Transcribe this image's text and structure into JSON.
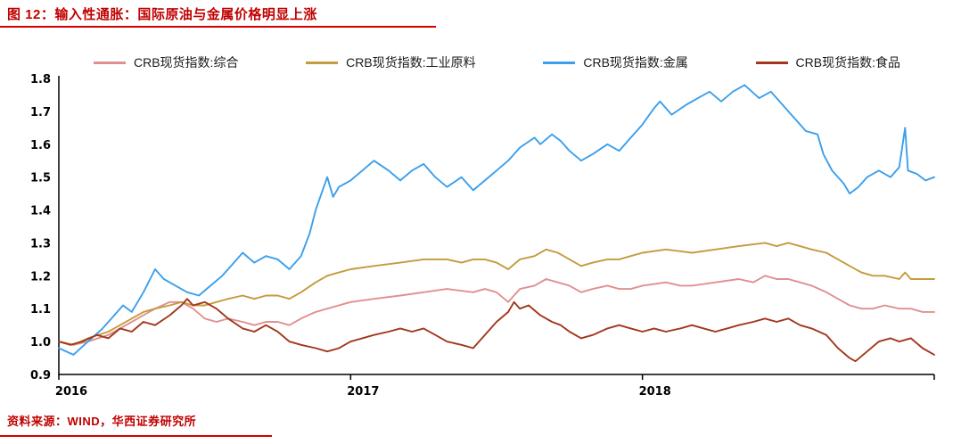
{
  "page": {
    "title": "图 12：输入性通胀：国际原油与金属价格明显上涨",
    "source_note": "资料来源：WIND，华西证券研究所",
    "accent_color": "#c00000"
  },
  "chart_data": {
    "type": "line",
    "title": "图 12：输入性通胀：国际原油与金属价格明显上涨",
    "grid": false,
    "legend_position": "top",
    "x_axis": {
      "range": [
        2016,
        2019
      ],
      "ticks": [
        "2016",
        "2017",
        "2018"
      ]
    },
    "y_axis": {
      "range": [
        0.9,
        1.8
      ],
      "ticks": [
        "0.9",
        "1.0",
        "1.1",
        "1.2",
        "1.3",
        "1.4",
        "1.5",
        "1.6",
        "1.7",
        "1.8"
      ]
    },
    "series": [
      {
        "name": "CRB现货指数:综合",
        "color": "#e09090",
        "points": [
          [
            2016.0,
            1.0
          ],
          [
            2016.05,
            0.99
          ],
          [
            2016.1,
            1.0
          ],
          [
            2016.17,
            1.02
          ],
          [
            2016.25,
            1.06
          ],
          [
            2016.29,
            1.08
          ],
          [
            2016.33,
            1.1
          ],
          [
            2016.38,
            1.12
          ],
          [
            2016.42,
            1.12
          ],
          [
            2016.46,
            1.1
          ],
          [
            2016.5,
            1.07
          ],
          [
            2016.54,
            1.06
          ],
          [
            2016.58,
            1.07
          ],
          [
            2016.63,
            1.06
          ],
          [
            2016.67,
            1.05
          ],
          [
            2016.71,
            1.06
          ],
          [
            2016.75,
            1.06
          ],
          [
            2016.79,
            1.05
          ],
          [
            2016.83,
            1.07
          ],
          [
            2016.88,
            1.09
          ],
          [
            2016.92,
            1.1
          ],
          [
            2016.96,
            1.11
          ],
          [
            2017.0,
            1.12
          ],
          [
            2017.08,
            1.13
          ],
          [
            2017.17,
            1.14
          ],
          [
            2017.25,
            1.15
          ],
          [
            2017.33,
            1.16
          ],
          [
            2017.42,
            1.15
          ],
          [
            2017.46,
            1.16
          ],
          [
            2017.5,
            1.15
          ],
          [
            2017.54,
            1.12
          ],
          [
            2017.58,
            1.16
          ],
          [
            2017.63,
            1.17
          ],
          [
            2017.67,
            1.19
          ],
          [
            2017.71,
            1.18
          ],
          [
            2017.75,
            1.17
          ],
          [
            2017.79,
            1.15
          ],
          [
            2017.83,
            1.16
          ],
          [
            2017.88,
            1.17
          ],
          [
            2017.92,
            1.16
          ],
          [
            2017.96,
            1.16
          ],
          [
            2018.0,
            1.17
          ],
          [
            2018.08,
            1.18
          ],
          [
            2018.13,
            1.17
          ],
          [
            2018.17,
            1.17
          ],
          [
            2018.25,
            1.18
          ],
          [
            2018.33,
            1.19
          ],
          [
            2018.38,
            1.18
          ],
          [
            2018.42,
            1.2
          ],
          [
            2018.46,
            1.19
          ],
          [
            2018.5,
            1.19
          ],
          [
            2018.54,
            1.18
          ],
          [
            2018.58,
            1.17
          ],
          [
            2018.63,
            1.15
          ],
          [
            2018.67,
            1.13
          ],
          [
            2018.71,
            1.11
          ],
          [
            2018.75,
            1.1
          ],
          [
            2018.79,
            1.1
          ],
          [
            2018.83,
            1.11
          ],
          [
            2018.88,
            1.1
          ],
          [
            2018.92,
            1.1
          ],
          [
            2018.96,
            1.09
          ],
          [
            2019.0,
            1.09
          ]
        ]
      },
      {
        "name": "CRB现货指数:工业原料",
        "color": "#c49b3e",
        "points": [
          [
            2016.0,
            1.0
          ],
          [
            2016.05,
            0.99
          ],
          [
            2016.1,
            1.01
          ],
          [
            2016.17,
            1.03
          ],
          [
            2016.25,
            1.07
          ],
          [
            2016.29,
            1.09
          ],
          [
            2016.33,
            1.1
          ],
          [
            2016.38,
            1.11
          ],
          [
            2016.42,
            1.12
          ],
          [
            2016.46,
            1.11
          ],
          [
            2016.5,
            1.11
          ],
          [
            2016.54,
            1.12
          ],
          [
            2016.58,
            1.13
          ],
          [
            2016.63,
            1.14
          ],
          [
            2016.67,
            1.13
          ],
          [
            2016.71,
            1.14
          ],
          [
            2016.75,
            1.14
          ],
          [
            2016.79,
            1.13
          ],
          [
            2016.83,
            1.15
          ],
          [
            2016.88,
            1.18
          ],
          [
            2016.92,
            1.2
          ],
          [
            2016.96,
            1.21
          ],
          [
            2017.0,
            1.22
          ],
          [
            2017.08,
            1.23
          ],
          [
            2017.17,
            1.24
          ],
          [
            2017.25,
            1.25
          ],
          [
            2017.33,
            1.25
          ],
          [
            2017.38,
            1.24
          ],
          [
            2017.42,
            1.25
          ],
          [
            2017.46,
            1.25
          ],
          [
            2017.5,
            1.24
          ],
          [
            2017.54,
            1.22
          ],
          [
            2017.58,
            1.25
          ],
          [
            2017.63,
            1.26
          ],
          [
            2017.67,
            1.28
          ],
          [
            2017.71,
            1.27
          ],
          [
            2017.75,
            1.25
          ],
          [
            2017.79,
            1.23
          ],
          [
            2017.83,
            1.24
          ],
          [
            2017.88,
            1.25
          ],
          [
            2017.92,
            1.25
          ],
          [
            2017.96,
            1.26
          ],
          [
            2018.0,
            1.27
          ],
          [
            2018.08,
            1.28
          ],
          [
            2018.17,
            1.27
          ],
          [
            2018.25,
            1.28
          ],
          [
            2018.33,
            1.29
          ],
          [
            2018.42,
            1.3
          ],
          [
            2018.46,
            1.29
          ],
          [
            2018.5,
            1.3
          ],
          [
            2018.54,
            1.29
          ],
          [
            2018.58,
            1.28
          ],
          [
            2018.63,
            1.27
          ],
          [
            2018.67,
            1.25
          ],
          [
            2018.71,
            1.23
          ],
          [
            2018.75,
            1.21
          ],
          [
            2018.79,
            1.2
          ],
          [
            2018.83,
            1.2
          ],
          [
            2018.88,
            1.19
          ],
          [
            2018.9,
            1.21
          ],
          [
            2018.92,
            1.19
          ],
          [
            2018.96,
            1.19
          ],
          [
            2019.0,
            1.19
          ]
        ]
      },
      {
        "name": "CRB现货指数:金属",
        "color": "#3b9fec",
        "points": [
          [
            2016.0,
            0.98
          ],
          [
            2016.05,
            0.96
          ],
          [
            2016.1,
            1.0
          ],
          [
            2016.15,
            1.04
          ],
          [
            2016.19,
            1.08
          ],
          [
            2016.22,
            1.11
          ],
          [
            2016.25,
            1.09
          ],
          [
            2016.29,
            1.15
          ],
          [
            2016.33,
            1.22
          ],
          [
            2016.36,
            1.19
          ],
          [
            2016.4,
            1.17
          ],
          [
            2016.44,
            1.15
          ],
          [
            2016.48,
            1.14
          ],
          [
            2016.52,
            1.17
          ],
          [
            2016.56,
            1.2
          ],
          [
            2016.6,
            1.24
          ],
          [
            2016.63,
            1.27
          ],
          [
            2016.67,
            1.24
          ],
          [
            2016.71,
            1.26
          ],
          [
            2016.75,
            1.25
          ],
          [
            2016.79,
            1.22
          ],
          [
            2016.83,
            1.26
          ],
          [
            2016.86,
            1.33
          ],
          [
            2016.88,
            1.4
          ],
          [
            2016.9,
            1.45
          ],
          [
            2016.92,
            1.5
          ],
          [
            2016.94,
            1.44
          ],
          [
            2016.96,
            1.47
          ],
          [
            2017.0,
            1.49
          ],
          [
            2017.04,
            1.52
          ],
          [
            2017.08,
            1.55
          ],
          [
            2017.13,
            1.52
          ],
          [
            2017.17,
            1.49
          ],
          [
            2017.21,
            1.52
          ],
          [
            2017.25,
            1.54
          ],
          [
            2017.29,
            1.5
          ],
          [
            2017.33,
            1.47
          ],
          [
            2017.38,
            1.5
          ],
          [
            2017.42,
            1.46
          ],
          [
            2017.46,
            1.49
          ],
          [
            2017.5,
            1.52
          ],
          [
            2017.54,
            1.55
          ],
          [
            2017.58,
            1.59
          ],
          [
            2017.63,
            1.62
          ],
          [
            2017.65,
            1.6
          ],
          [
            2017.69,
            1.63
          ],
          [
            2017.72,
            1.61
          ],
          [
            2017.75,
            1.58
          ],
          [
            2017.79,
            1.55
          ],
          [
            2017.83,
            1.57
          ],
          [
            2017.88,
            1.6
          ],
          [
            2017.92,
            1.58
          ],
          [
            2017.96,
            1.62
          ],
          [
            2018.0,
            1.66
          ],
          [
            2018.04,
            1.71
          ],
          [
            2018.06,
            1.73
          ],
          [
            2018.1,
            1.69
          ],
          [
            2018.15,
            1.72
          ],
          [
            2018.19,
            1.74
          ],
          [
            2018.23,
            1.76
          ],
          [
            2018.27,
            1.73
          ],
          [
            2018.31,
            1.76
          ],
          [
            2018.35,
            1.78
          ],
          [
            2018.4,
            1.74
          ],
          [
            2018.44,
            1.76
          ],
          [
            2018.48,
            1.72
          ],
          [
            2018.52,
            1.68
          ],
          [
            2018.56,
            1.64
          ],
          [
            2018.6,
            1.63
          ],
          [
            2018.62,
            1.57
          ],
          [
            2018.65,
            1.52
          ],
          [
            2018.69,
            1.48
          ],
          [
            2018.71,
            1.45
          ],
          [
            2018.74,
            1.47
          ],
          [
            2018.77,
            1.5
          ],
          [
            2018.81,
            1.52
          ],
          [
            2018.85,
            1.5
          ],
          [
            2018.88,
            1.53
          ],
          [
            2018.9,
            1.65
          ],
          [
            2018.91,
            1.52
          ],
          [
            2018.94,
            1.51
          ],
          [
            2018.97,
            1.49
          ],
          [
            2019.0,
            1.5
          ]
        ]
      },
      {
        "name": "CRB现货指数:食品",
        "color": "#a2371e",
        "points": [
          [
            2016.0,
            1.0
          ],
          [
            2016.04,
            0.99
          ],
          [
            2016.08,
            1.0
          ],
          [
            2016.13,
            1.02
          ],
          [
            2016.17,
            1.01
          ],
          [
            2016.21,
            1.04
          ],
          [
            2016.25,
            1.03
          ],
          [
            2016.29,
            1.06
          ],
          [
            2016.33,
            1.05
          ],
          [
            2016.38,
            1.08
          ],
          [
            2016.42,
            1.11
          ],
          [
            2016.44,
            1.13
          ],
          [
            2016.46,
            1.11
          ],
          [
            2016.5,
            1.12
          ],
          [
            2016.54,
            1.1
          ],
          [
            2016.58,
            1.07
          ],
          [
            2016.63,
            1.04
          ],
          [
            2016.67,
            1.03
          ],
          [
            2016.71,
            1.05
          ],
          [
            2016.75,
            1.03
          ],
          [
            2016.79,
            1.0
          ],
          [
            2016.83,
            0.99
          ],
          [
            2016.88,
            0.98
          ],
          [
            2016.92,
            0.97
          ],
          [
            2016.96,
            0.98
          ],
          [
            2017.0,
            1.0
          ],
          [
            2017.04,
            1.01
          ],
          [
            2017.08,
            1.02
          ],
          [
            2017.13,
            1.03
          ],
          [
            2017.17,
            1.04
          ],
          [
            2017.21,
            1.03
          ],
          [
            2017.25,
            1.04
          ],
          [
            2017.29,
            1.02
          ],
          [
            2017.33,
            1.0
          ],
          [
            2017.38,
            0.99
          ],
          [
            2017.42,
            0.98
          ],
          [
            2017.46,
            1.02
          ],
          [
            2017.5,
            1.06
          ],
          [
            2017.54,
            1.09
          ],
          [
            2017.56,
            1.12
          ],
          [
            2017.58,
            1.1
          ],
          [
            2017.61,
            1.11
          ],
          [
            2017.65,
            1.08
          ],
          [
            2017.69,
            1.06
          ],
          [
            2017.72,
            1.05
          ],
          [
            2017.75,
            1.03
          ],
          [
            2017.79,
            1.01
          ],
          [
            2017.83,
            1.02
          ],
          [
            2017.88,
            1.04
          ],
          [
            2017.92,
            1.05
          ],
          [
            2017.96,
            1.04
          ],
          [
            2018.0,
            1.03
          ],
          [
            2018.04,
            1.04
          ],
          [
            2018.08,
            1.03
          ],
          [
            2018.13,
            1.04
          ],
          [
            2018.17,
            1.05
          ],
          [
            2018.21,
            1.04
          ],
          [
            2018.25,
            1.03
          ],
          [
            2018.29,
            1.04
          ],
          [
            2018.33,
            1.05
          ],
          [
            2018.38,
            1.06
          ],
          [
            2018.42,
            1.07
          ],
          [
            2018.46,
            1.06
          ],
          [
            2018.5,
            1.07
          ],
          [
            2018.54,
            1.05
          ],
          [
            2018.58,
            1.04
          ],
          [
            2018.63,
            1.02
          ],
          [
            2018.67,
            0.98
          ],
          [
            2018.71,
            0.95
          ],
          [
            2018.73,
            0.94
          ],
          [
            2018.77,
            0.97
          ],
          [
            2018.81,
            1.0
          ],
          [
            2018.85,
            1.01
          ],
          [
            2018.88,
            1.0
          ],
          [
            2018.92,
            1.01
          ],
          [
            2018.96,
            0.98
          ],
          [
            2019.0,
            0.96
          ]
        ]
      }
    ]
  }
}
